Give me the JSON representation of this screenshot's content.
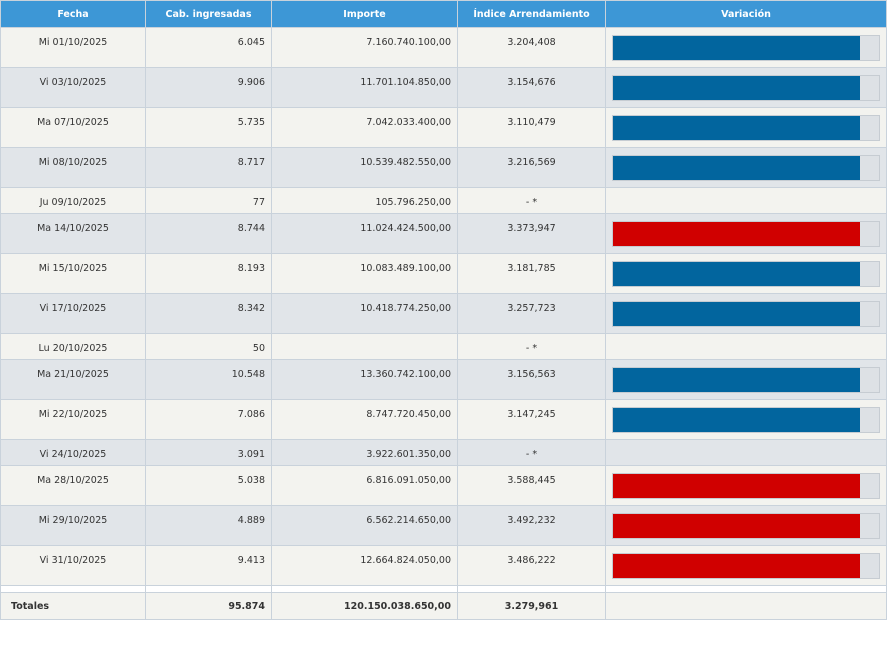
{
  "headers": {
    "fecha": "Fecha",
    "cab": "Cab. ingresadas",
    "importe": "Importe",
    "indice": "Índice Arrendamiento",
    "variacion": "Variación"
  },
  "colors": {
    "header": "#3d97d6",
    "bar_up": "#02659e",
    "bar_down": "#d00000",
    "track": "#dde1e5"
  },
  "rows": [
    {
      "fecha": "Mi 01/10/2025",
      "cab": "6.045",
      "importe": "7.160.740.100,00",
      "indice": "3.204,408",
      "bar": "up",
      "fill": 0.93
    },
    {
      "fecha": "Vi 03/10/2025",
      "cab": "9.906",
      "importe": "11.701.104.850,00",
      "indice": "3.154,676",
      "bar": "up",
      "fill": 0.93
    },
    {
      "fecha": "Ma 07/10/2025",
      "cab": "5.735",
      "importe": "7.042.033.400,00",
      "indice": "3.110,479",
      "bar": "up",
      "fill": 0.93
    },
    {
      "fecha": "Mi 08/10/2025",
      "cab": "8.717",
      "importe": "10.539.482.550,00",
      "indice": "3.216,569",
      "bar": "up",
      "fill": 0.93
    },
    {
      "fecha": "Ju 09/10/2025",
      "cab": "77",
      "importe": "105.796.250,00",
      "indice": "- *",
      "bar": "none",
      "fill": 0
    },
    {
      "fecha": "Ma 14/10/2025",
      "cab": "8.744",
      "importe": "11.024.424.500,00",
      "indice": "3.373,947",
      "bar": "down",
      "fill": 0.93
    },
    {
      "fecha": "Mi 15/10/2025",
      "cab": "8.193",
      "importe": "10.083.489.100,00",
      "indice": "3.181,785",
      "bar": "up",
      "fill": 0.93
    },
    {
      "fecha": "Vi 17/10/2025",
      "cab": "8.342",
      "importe": "10.418.774.250,00",
      "indice": "3.257,723",
      "bar": "up",
      "fill": 0.93
    },
    {
      "fecha": "Lu 20/10/2025",
      "cab": "50",
      "importe": "",
      "indice": "- *",
      "bar": "none",
      "fill": 0
    },
    {
      "fecha": "Ma 21/10/2025",
      "cab": "10.548",
      "importe": "13.360.742.100,00",
      "indice": "3.156,563",
      "bar": "up",
      "fill": 0.93
    },
    {
      "fecha": "Mi 22/10/2025",
      "cab": "7.086",
      "importe": "8.747.720.450,00",
      "indice": "3.147,245",
      "bar": "up",
      "fill": 0.93
    },
    {
      "fecha": "Vi 24/10/2025",
      "cab": "3.091",
      "importe": "3.922.601.350,00",
      "indice": "- *",
      "bar": "none",
      "fill": 0
    },
    {
      "fecha": "Ma 28/10/2025",
      "cab": "5.038",
      "importe": "6.816.091.050,00",
      "indice": "3.588,445",
      "bar": "down",
      "fill": 0.93
    },
    {
      "fecha": "Mi 29/10/2025",
      "cab": "4.889",
      "importe": "6.562.214.650,00",
      "indice": "3.492,232",
      "bar": "down",
      "fill": 0.93
    },
    {
      "fecha": "Vi 31/10/2025",
      "cab": "9.413",
      "importe": "12.664.824.050,00",
      "indice": "3.486,222",
      "bar": "down",
      "fill": 0.93
    }
  ],
  "totals": {
    "label": "Totales",
    "cab": "95.874",
    "importe": "120.150.038.650,00",
    "indice": "3.279,961"
  }
}
